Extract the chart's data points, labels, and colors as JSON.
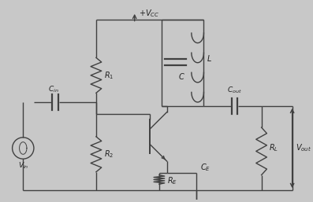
{
  "bg_color": "#c8c8c8",
  "line_color": "#404040",
  "text_color": "#202020",
  "figsize": [
    3.97,
    2.57
  ],
  "dpi": 100
}
